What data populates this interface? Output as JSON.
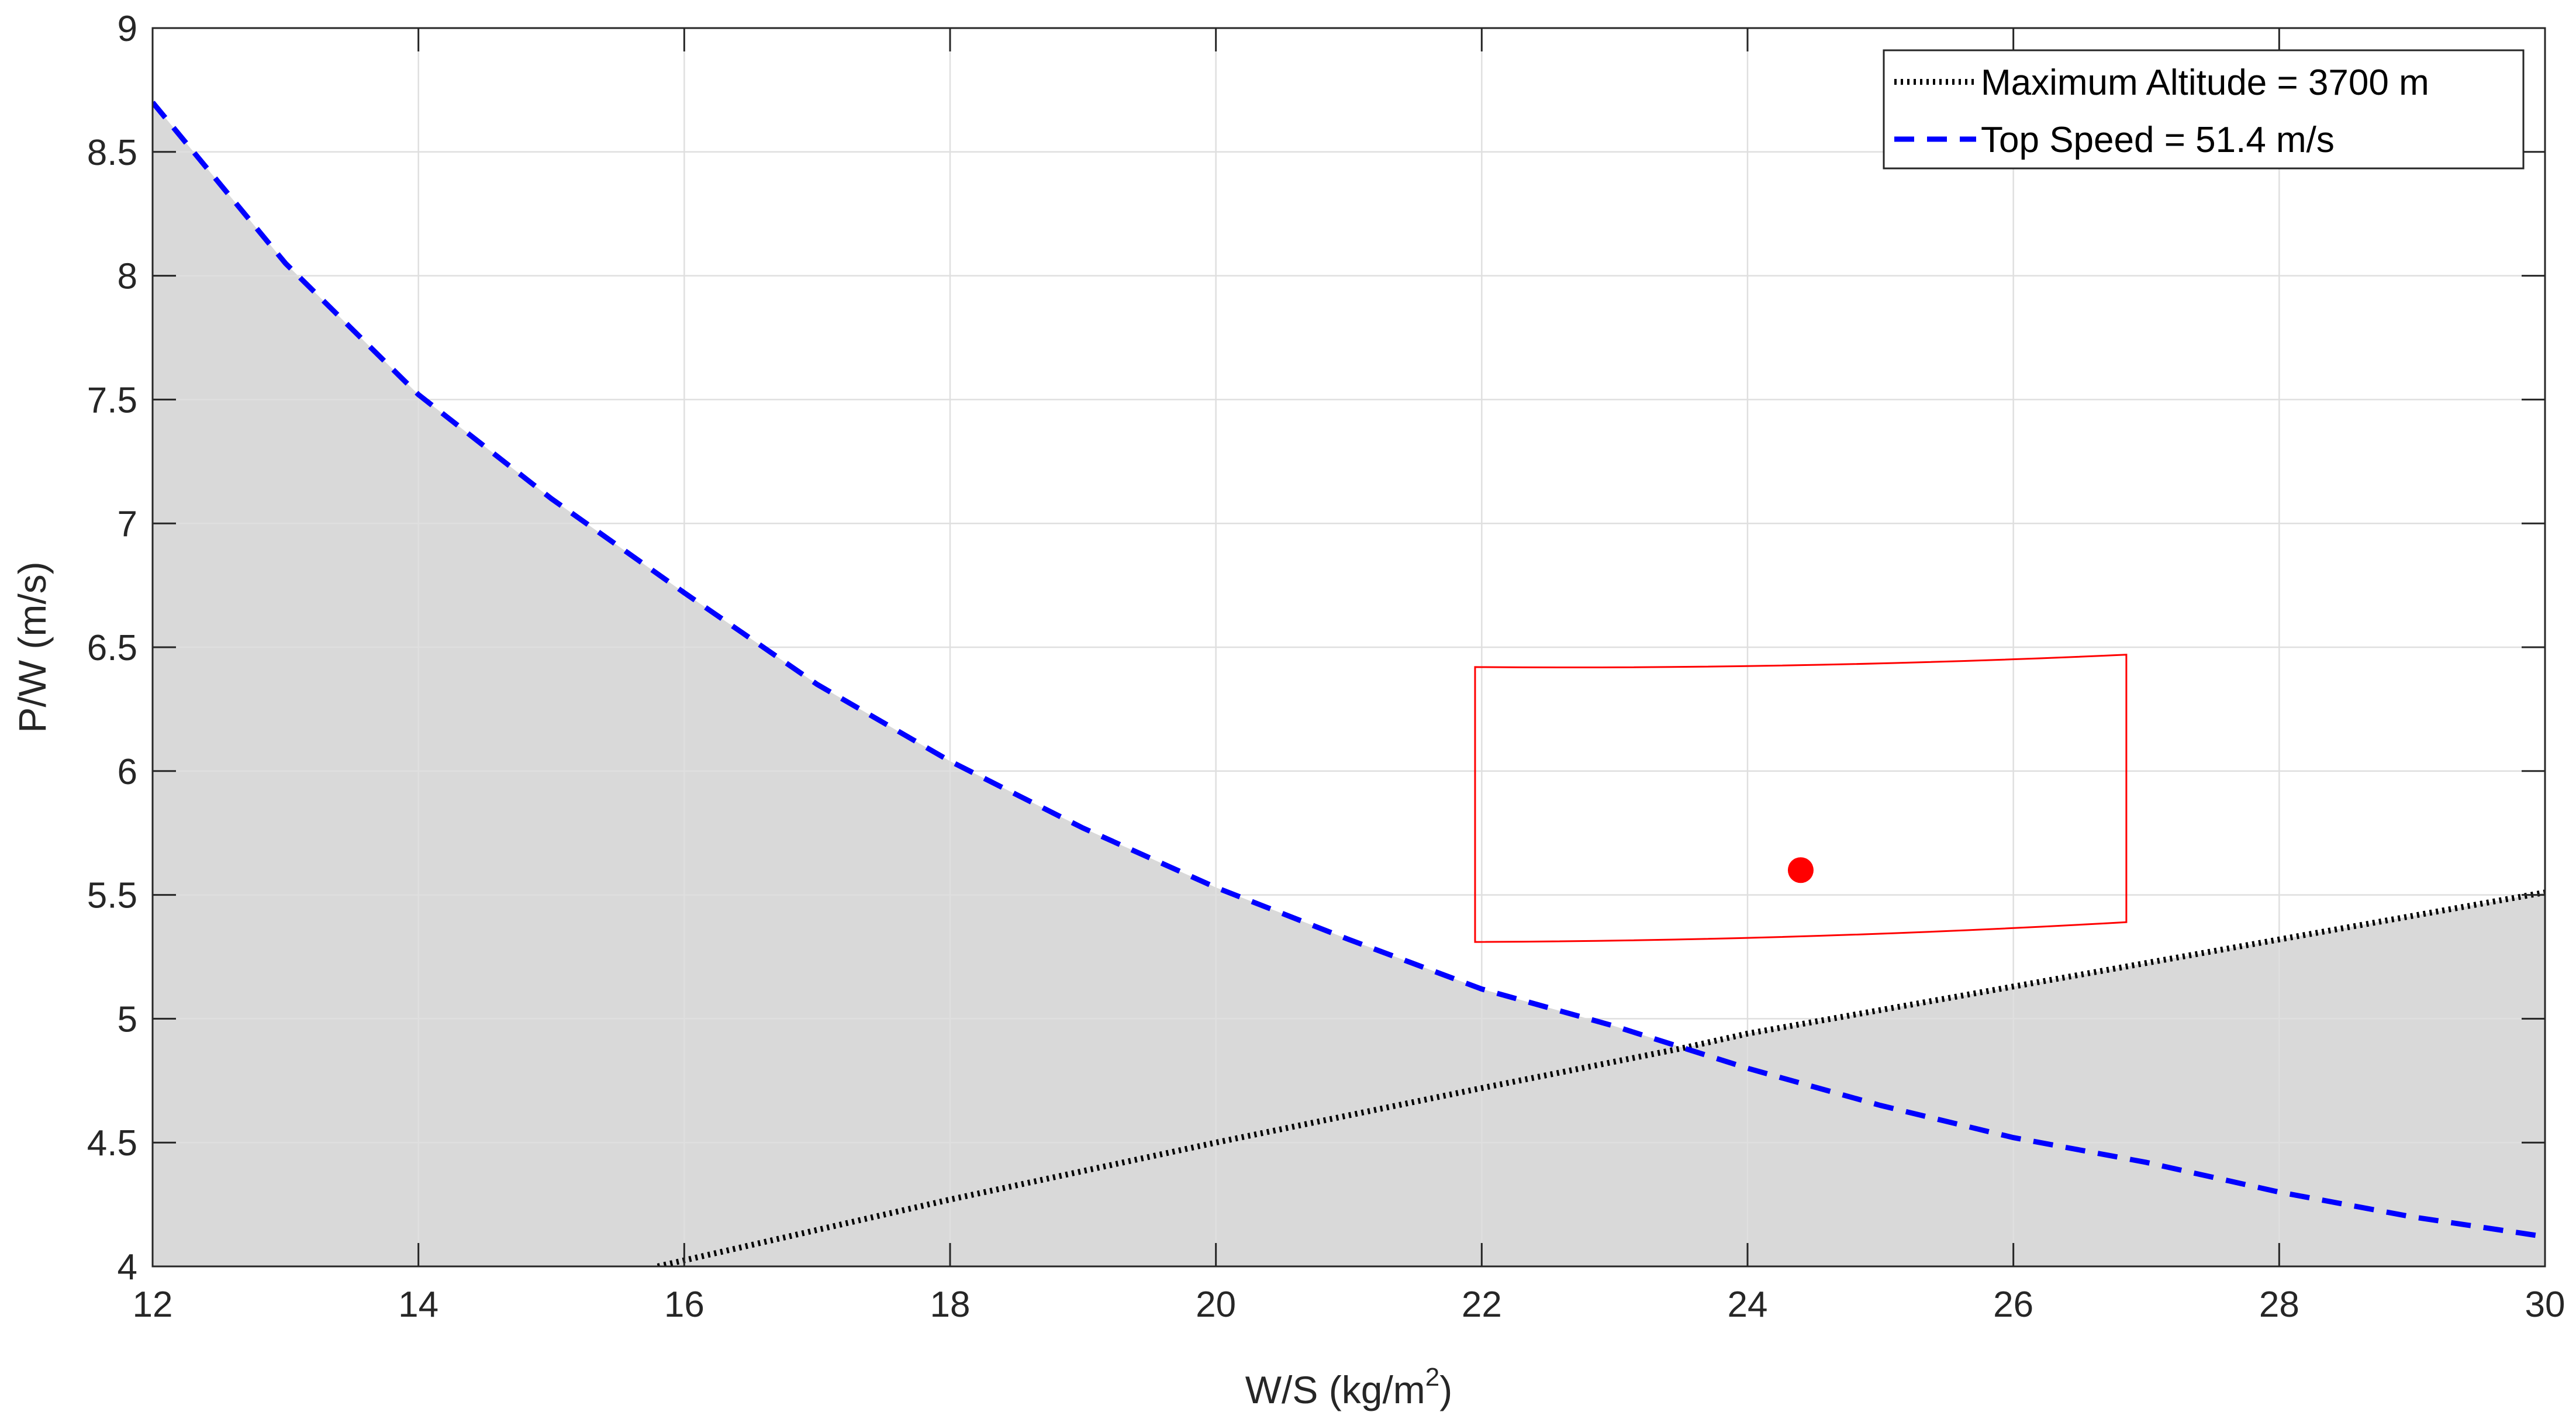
{
  "chart_data": {
    "type": "line",
    "title": "",
    "xlabel": "W/S (kg/m",
    "xlabel_sup": "2",
    "xlabel_close": ")",
    "ylabel": "P/W (m/s)",
    "xlim": [
      12,
      30
    ],
    "ylim": [
      4,
      9
    ],
    "grid": true,
    "legend_position": "top-right",
    "x_ticks": [
      12,
      14,
      16,
      18,
      20,
      22,
      24,
      26,
      28,
      30
    ],
    "y_ticks": [
      4,
      4.5,
      5,
      5.5,
      6,
      6.5,
      7,
      7.5,
      8,
      8.5,
      9
    ],
    "series": [
      {
        "name": "Maximum Altitude = 3700 m",
        "style": "dotted",
        "color": "#000000",
        "points": [
          [
            15.8,
            4.0
          ],
          [
            18,
            4.27
          ],
          [
            20,
            4.5
          ],
          [
            22,
            4.72
          ],
          [
            23.5,
            4.88
          ],
          [
            24,
            4.94
          ],
          [
            26,
            5.13
          ],
          [
            28,
            5.32
          ],
          [
            30,
            5.51
          ]
        ]
      },
      {
        "name": "Top Speed = 51.4 m/s",
        "style": "dashed",
        "color": "#0000ff",
        "points": [
          [
            12,
            8.7
          ],
          [
            13,
            8.05
          ],
          [
            14,
            7.52
          ],
          [
            15,
            7.1
          ],
          [
            16,
            6.72
          ],
          [
            17,
            6.35
          ],
          [
            18,
            6.04
          ],
          [
            19,
            5.77
          ],
          [
            20,
            5.53
          ],
          [
            21,
            5.32
          ],
          [
            22,
            5.12
          ],
          [
            23,
            4.97
          ],
          [
            24,
            4.8
          ],
          [
            25,
            4.65
          ],
          [
            26,
            4.52
          ],
          [
            27,
            4.42
          ],
          [
            28,
            4.3
          ],
          [
            29,
            4.2
          ],
          [
            30,
            4.12
          ]
        ]
      }
    ],
    "shaded_region": {
      "color": "#d9d9d9",
      "description_of_boundary": "max of both constraint curves"
    },
    "design_region": {
      "color": "#ff0000",
      "corners": [
        [
          21.95,
          6.42
        ],
        [
          26.85,
          6.47
        ],
        [
          26.85,
          5.39
        ],
        [
          21.95,
          5.31
        ]
      ]
    },
    "design_point": {
      "color": "#ff0000",
      "x": 24.4,
      "y": 5.6
    }
  }
}
